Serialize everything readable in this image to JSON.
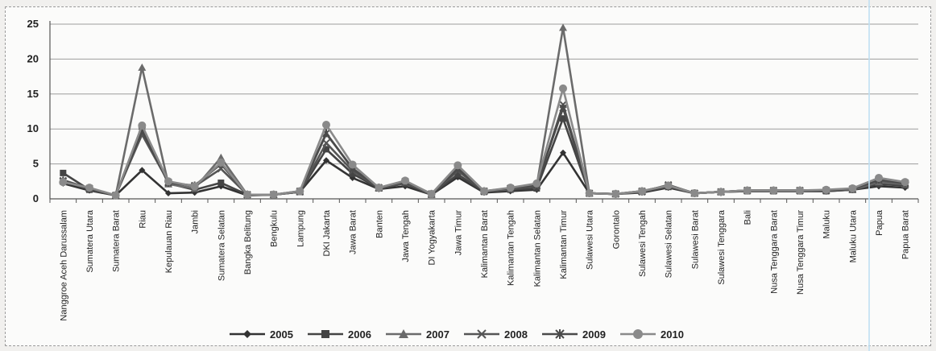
{
  "chart_data": {
    "type": "line",
    "title": "",
    "xlabel": "",
    "ylabel": "",
    "ylim": [
      0,
      25
    ],
    "yticks": [
      0,
      5,
      10,
      15,
      20,
      25
    ],
    "grid": true,
    "legend_position": "bottom",
    "categories": [
      "Nanggroe Aceh Darussalam",
      "Sumatera Utara",
      "Sumatera Barat",
      "Riau",
      "Kepulauan Riau",
      "Jambi",
      "Sumatera Selatan",
      "Bangka Belitung",
      "Bengkulu",
      "Lampung",
      "DKI Jakarta",
      "Jawa Barat",
      "Banten",
      "Jawa Tengah",
      "DI Yogyakarta",
      "Jawa Timur",
      "Kalimantan Barat",
      "Kalimantan Tengah",
      "Kalimantan Selatan",
      "Kalimantan Timur",
      "Sulawesi Utara",
      "Gorontalo",
      "Sulawesi Tengah",
      "Sulawesi Selatan",
      "Sulawesi Barat",
      "Sulawesi Tenggara",
      "Bali",
      "Nusa Tenggara Barat",
      "Nusa Tenggara Timur",
      "Maluku",
      "Maluku Utara",
      "Papua",
      "Papua Barat"
    ],
    "series": [
      {
        "name": "2005",
        "marker": "diamond",
        "color": "#333333",
        "values": [
          2.2,
          1.2,
          0.5,
          4.1,
          0.8,
          0.9,
          1.8,
          0.5,
          0.6,
          1.0,
          5.5,
          3.0,
          1.4,
          1.8,
          0.6,
          3.1,
          0.9,
          1.1,
          1.3,
          6.6,
          0.8,
          0.7,
          0.9,
          1.6,
          0.8,
          1.0,
          1.1,
          1.1,
          1.1,
          1.1,
          1.3,
          1.8,
          1.6
        ]
      },
      {
        "name": "2006",
        "marker": "square",
        "color": "#444444",
        "values": [
          3.7,
          1.3,
          0.5,
          10.3,
          2.2,
          1.3,
          2.3,
          0.6,
          0.6,
          1.0,
          7.1,
          3.6,
          1.5,
          2.2,
          0.6,
          3.5,
          1.0,
          1.3,
          1.5,
          11.5,
          0.8,
          0.7,
          1.0,
          1.7,
          0.8,
          1.0,
          1.1,
          1.1,
          1.1,
          1.1,
          1.3,
          2.1,
          1.9
        ]
      },
      {
        "name": "2007",
        "marker": "triangle",
        "color": "#6b6b6b",
        "values": [
          2.7,
          1.5,
          0.5,
          18.8,
          2.1,
          1.5,
          5.9,
          0.6,
          0.6,
          1.0,
          9.3,
          4.4,
          1.5,
          2.4,
          0.6,
          4.7,
          1.1,
          1.4,
          1.9,
          24.5,
          0.8,
          0.7,
          1.1,
          1.9,
          0.8,
          1.0,
          1.2,
          1.2,
          1.2,
          1.2,
          1.3,
          2.4,
          2.1
        ]
      },
      {
        "name": "2008",
        "marker": "x",
        "color": "#555555",
        "values": [
          2.5,
          1.4,
          0.5,
          9.2,
          2.4,
          1.8,
          4.3,
          0.6,
          0.6,
          1.0,
          8.0,
          4.0,
          1.6,
          2.3,
          0.7,
          4.0,
          1.1,
          1.5,
          1.8,
          13.5,
          0.8,
          0.7,
          1.0,
          2.0,
          0.8,
          1.0,
          1.2,
          1.2,
          1.2,
          1.2,
          1.4,
          2.6,
          2.2
        ]
      },
      {
        "name": "2009",
        "marker": "star",
        "color": "#4a4a4a",
        "values": [
          2.6,
          1.5,
          0.5,
          9.8,
          2.3,
          1.9,
          5.0,
          0.6,
          0.6,
          1.1,
          9.4,
          4.3,
          1.6,
          2.5,
          0.7,
          4.3,
          1.1,
          1.5,
          2.0,
          13.0,
          0.8,
          0.7,
          1.1,
          1.9,
          0.8,
          1.0,
          1.2,
          1.2,
          1.2,
          1.2,
          1.4,
          2.8,
          2.3
        ]
      },
      {
        "name": "2010",
        "marker": "circle",
        "color": "#8a8a8a",
        "values": [
          2.4,
          1.6,
          0.5,
          10.5,
          2.5,
          1.8,
          5.2,
          0.6,
          0.6,
          1.1,
          10.6,
          4.9,
          1.6,
          2.6,
          0.7,
          4.8,
          1.1,
          1.6,
          2.2,
          15.8,
          0.8,
          0.7,
          1.1,
          1.9,
          0.8,
          1.0,
          1.2,
          1.2,
          1.2,
          1.3,
          1.5,
          3.0,
          2.4
        ]
      }
    ]
  }
}
